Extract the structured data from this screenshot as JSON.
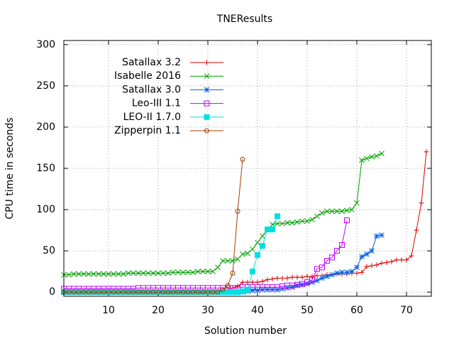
{
  "chart_data": {
    "type": "line",
    "title": "TNEResults",
    "xlabel": "Solution number",
    "ylabel": "CPU time in seconds",
    "xlim": [
      1,
      75
    ],
    "xticks": [
      10,
      20,
      30,
      40,
      50,
      60,
      70
    ],
    "ylim": [
      -5,
      305
    ],
    "yticks": [
      0,
      50,
      100,
      150,
      200,
      250,
      300
    ],
    "grid": true,
    "legend": "top-left",
    "series": [
      {
        "name": "Satallax 3.2",
        "color": "#e00000",
        "marker": "plus",
        "x": [
          1,
          2,
          3,
          4,
          5,
          6,
          7,
          8,
          9,
          10,
          11,
          12,
          13,
          14,
          15,
          16,
          17,
          18,
          19,
          20,
          21,
          22,
          23,
          24,
          25,
          26,
          27,
          28,
          29,
          30,
          31,
          32,
          33,
          34,
          35,
          36,
          37,
          38,
          39,
          40,
          41,
          42,
          43,
          44,
          45,
          46,
          47,
          48,
          49,
          50,
          51,
          52,
          53,
          54,
          55,
          56,
          57,
          58,
          59,
          60,
          61,
          62,
          63,
          64,
          65,
          66,
          67,
          68,
          69,
          70,
          71,
          72,
          73,
          74
        ],
        "values": [
          1,
          1,
          1,
          1,
          1,
          1,
          1,
          1,
          1,
          1,
          1,
          1,
          1,
          1,
          1,
          1,
          1,
          1,
          1,
          1,
          1,
          1,
          1,
          1,
          1,
          1,
          1,
          1,
          1,
          1,
          1,
          1,
          2,
          3,
          5,
          7,
          12,
          12,
          12,
          12,
          13,
          15,
          16,
          17,
          17,
          17,
          18,
          18,
          18,
          19,
          19,
          20,
          20,
          21,
          21,
          22,
          22,
          22,
          23,
          23,
          24,
          31,
          32,
          33,
          35,
          36,
          37,
          39,
          39,
          39,
          44,
          75,
          108,
          170
        ]
      },
      {
        "name": "Isabelle 2016",
        "color": "#00a000",
        "marker": "cross",
        "x": [
          1,
          2,
          3,
          4,
          5,
          6,
          7,
          8,
          9,
          10,
          11,
          12,
          13,
          14,
          15,
          16,
          17,
          18,
          19,
          20,
          21,
          22,
          23,
          24,
          25,
          26,
          27,
          28,
          29,
          30,
          31,
          32,
          33,
          34,
          35,
          36,
          37,
          38,
          39,
          40,
          41,
          42,
          43,
          44,
          45,
          46,
          47,
          48,
          49,
          50,
          51,
          52,
          53,
          54,
          55,
          56,
          57,
          58,
          59,
          60,
          61,
          62,
          63,
          64,
          65
        ],
        "values": [
          21,
          21,
          22,
          22,
          22,
          22,
          22,
          22,
          22,
          22,
          22,
          22,
          22,
          23,
          23,
          23,
          23,
          23,
          23,
          23,
          23,
          23,
          24,
          24,
          24,
          24,
          24,
          25,
          25,
          25,
          25,
          30,
          38,
          38,
          38,
          40,
          46,
          47,
          52,
          60,
          68,
          76,
          82,
          83,
          83,
          84,
          84,
          85,
          86,
          86,
          88,
          92,
          96,
          98,
          98,
          98,
          98,
          99,
          100,
          108,
          160,
          162,
          164,
          165,
          168
        ]
      },
      {
        "name": "Satallax 3.0",
        "color": "#0060e0",
        "marker": "star",
        "x": [
          1,
          2,
          3,
          4,
          5,
          6,
          7,
          8,
          9,
          10,
          11,
          12,
          13,
          14,
          15,
          16,
          17,
          18,
          19,
          20,
          21,
          22,
          23,
          24,
          25,
          26,
          27,
          28,
          29,
          30,
          31,
          32,
          33,
          34,
          35,
          36,
          37,
          38,
          39,
          40,
          41,
          42,
          43,
          44,
          45,
          46,
          47,
          48,
          49,
          50,
          51,
          52,
          53,
          54,
          55,
          56,
          57,
          58,
          59,
          60,
          61,
          62,
          63,
          64,
          65
        ],
        "values": [
          0,
          0,
          0,
          0,
          0,
          0,
          0,
          0,
          0,
          0,
          0,
          0,
          0,
          0,
          0,
          0,
          0,
          0,
          0,
          0,
          0,
          0,
          0,
          0,
          0,
          0,
          0,
          0,
          0,
          0,
          0,
          0,
          0,
          0,
          0,
          0,
          0,
          1,
          2,
          2,
          3,
          3,
          3,
          3,
          4,
          5,
          6,
          8,
          9,
          10,
          12,
          14,
          17,
          19,
          21,
          23,
          24,
          24,
          25,
          30,
          43,
          46,
          50,
          68,
          69
        ]
      },
      {
        "name": "Leo-III 1.1",
        "color": "#c000ff",
        "marker": "square",
        "x": [
          1,
          2,
          3,
          4,
          5,
          6,
          7,
          8,
          9,
          10,
          11,
          12,
          13,
          14,
          15,
          16,
          17,
          18,
          19,
          20,
          21,
          22,
          23,
          24,
          25,
          26,
          27,
          28,
          29,
          30,
          31,
          32,
          33,
          34,
          35,
          36,
          37,
          38,
          39,
          40,
          41,
          42,
          43,
          44,
          45,
          46,
          47,
          48,
          49,
          50,
          51,
          52,
          53,
          54,
          55,
          56,
          57,
          58
        ],
        "values": [
          4,
          4,
          4,
          4,
          4,
          4,
          4,
          4,
          4,
          4,
          4,
          4,
          4,
          4,
          4,
          5,
          5,
          5,
          5,
          5,
          5,
          5,
          5,
          5,
          5,
          5,
          5,
          5,
          5,
          5,
          5,
          5,
          5,
          5,
          5,
          5,
          6,
          6,
          6,
          6,
          6,
          6,
          6,
          6,
          7,
          8,
          8,
          9,
          10,
          12,
          15,
          28,
          30,
          38,
          42,
          50,
          57,
          87
        ]
      },
      {
        "name": "LEO-II 1.7.0",
        "color": "#00e0e0",
        "marker": "filled-square",
        "x": [
          1,
          2,
          3,
          4,
          5,
          6,
          7,
          8,
          9,
          10,
          11,
          12,
          13,
          14,
          15,
          16,
          17,
          18,
          19,
          20,
          21,
          22,
          23,
          24,
          25,
          26,
          27,
          28,
          29,
          30,
          31,
          32,
          33,
          34,
          35,
          36,
          37,
          38,
          39,
          40,
          41,
          42,
          43,
          44
        ],
        "values": [
          0,
          0,
          0,
          0,
          0,
          0,
          0,
          0,
          0,
          0,
          0,
          0,
          0,
          0,
          0,
          0,
          0,
          0,
          0,
          0,
          0,
          0,
          0,
          0,
          0,
          0,
          0,
          0,
          0,
          0,
          0,
          0,
          0,
          0,
          0,
          0,
          1,
          3,
          25,
          45,
          56,
          76,
          76,
          92
        ]
      },
      {
        "name": "Zipperpin 1.1",
        "color": "#a04000",
        "marker": "circle",
        "x": [
          1,
          2,
          3,
          4,
          5,
          6,
          7,
          8,
          9,
          10,
          11,
          12,
          13,
          14,
          15,
          16,
          17,
          18,
          19,
          20,
          21,
          22,
          23,
          24,
          25,
          26,
          27,
          28,
          29,
          30,
          31,
          32,
          33,
          34,
          35,
          36,
          37
        ],
        "values": [
          0,
          0,
          0,
          0,
          0,
          0,
          0,
          0,
          0,
          0,
          0,
          0,
          0,
          0,
          0,
          0,
          0,
          0,
          0,
          0,
          0,
          0,
          0,
          0,
          0,
          0,
          0,
          0,
          0,
          0,
          0,
          0,
          3,
          8,
          23,
          98,
          161
        ]
      }
    ]
  }
}
